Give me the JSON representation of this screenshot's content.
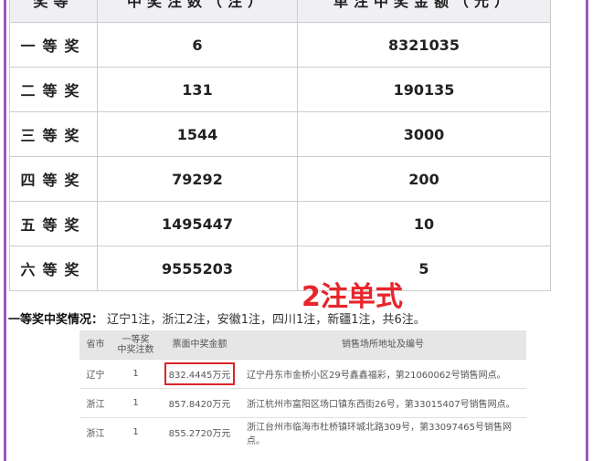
{
  "prize_table": {
    "headers": [
      "奖等",
      "中奖注数（注）",
      "单注中奖金额（元）"
    ],
    "rows": [
      {
        "level": "一等奖",
        "count": "6",
        "amount": "8321035"
      },
      {
        "level": "二等奖",
        "count": "131",
        "amount": "190135"
      },
      {
        "level": "三等奖",
        "count": "1544",
        "amount": "3000"
      },
      {
        "level": "四等奖",
        "count": "79292",
        "amount": "200"
      },
      {
        "level": "五等奖",
        "count": "1495447",
        "amount": "10"
      },
      {
        "level": "六等奖",
        "count": "9555203",
        "amount": "5"
      }
    ]
  },
  "annotation": "2注单式",
  "summary": {
    "label": "一等奖中奖情况：",
    "text": "辽宁1注，浙江2注，安徽1注，四川1注，新疆1注，共6注。"
  },
  "winners_table": {
    "headers": [
      "省市",
      "一等奖\n中奖注数",
      "票面中奖金额",
      "销售场所地址及编号"
    ],
    "rows": [
      {
        "province": "辽宁",
        "count": "1",
        "amount": "832.4445万元",
        "address": "辽宁丹东市金桥小区29号鑫鑫福彩，第21060062号销售网点。"
      },
      {
        "province": "浙江",
        "count": "1",
        "amount": "857.8420万元",
        "address": "浙江杭州市富阳区场口镇东西街26号，第33015407号销售网点。"
      },
      {
        "province": "浙江",
        "count": "1",
        "amount": "855.2720万元",
        "address": "浙江台州市临海市杜桥镇环城北路309号，第33097465号销售网点。"
      }
    ]
  },
  "colors": {
    "frame": "#9b59b6",
    "highlight": "#d9232a"
  }
}
